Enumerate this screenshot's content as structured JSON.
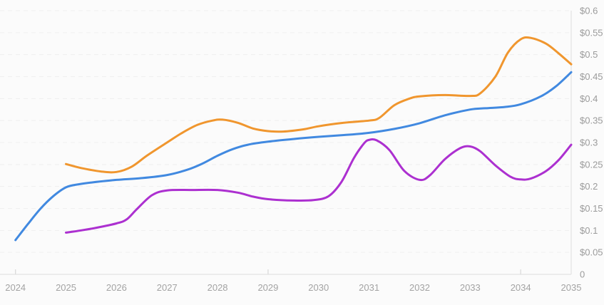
{
  "chart_data": {
    "type": "line",
    "title": "",
    "legend": "none",
    "grid": "horizontal-dashed",
    "xlim": [
      2024,
      2035
    ],
    "ylim": [
      0,
      0.6
    ],
    "x_axis": {
      "labels": [
        "2024",
        "2025",
        "2026",
        "2027",
        "2028",
        "2029",
        "2030",
        "2031",
        "2032",
        "2033",
        "2034",
        "2035"
      ],
      "tick_years": [
        2024,
        2025,
        2026,
        2027,
        2028,
        2029,
        2030,
        2031,
        2032,
        2033,
        2034,
        2035
      ],
      "major_tick_years": [
        2024,
        2029,
        2034
      ]
    },
    "y_axis": {
      "unit": "$",
      "labels": [
        "$0.6",
        "$0.55",
        "$0.5",
        "$0.45",
        "$0.4",
        "$0.35",
        "$0.3",
        "$0.25",
        "$0.2",
        "$0.15",
        "$0.1",
        "$0.05",
        "0"
      ],
      "values": [
        0.6,
        0.55,
        0.5,
        0.45,
        0.4,
        0.35,
        0.3,
        0.25,
        0.2,
        0.15,
        0.1,
        0.05,
        0
      ]
    },
    "series": [
      {
        "name": "blue-series",
        "color": "#4189e0",
        "points": [
          [
            2024,
            0.078
          ],
          [
            2024.25,
            0.115
          ],
          [
            2024.5,
            0.15
          ],
          [
            2024.75,
            0.178
          ],
          [
            2025,
            0.198
          ],
          [
            2025.25,
            0.205
          ],
          [
            2025.5,
            0.209
          ],
          [
            2026,
            0.215
          ],
          [
            2026.5,
            0.219
          ],
          [
            2027,
            0.226
          ],
          [
            2027.4,
            0.238
          ],
          [
            2027.7,
            0.252
          ],
          [
            2028,
            0.27
          ],
          [
            2028.3,
            0.285
          ],
          [
            2028.6,
            0.295
          ],
          [
            2029,
            0.302
          ],
          [
            2029.5,
            0.308
          ],
          [
            2030,
            0.313
          ],
          [
            2030.5,
            0.317
          ],
          [
            2031,
            0.322
          ],
          [
            2031.5,
            0.331
          ],
          [
            2032,
            0.344
          ],
          [
            2032.5,
            0.362
          ],
          [
            2033,
            0.375
          ],
          [
            2033.3,
            0.378
          ],
          [
            2033.7,
            0.381
          ],
          [
            2034,
            0.387
          ],
          [
            2034.4,
            0.405
          ],
          [
            2034.7,
            0.428
          ],
          [
            2035,
            0.46
          ]
        ]
      },
      {
        "name": "orange-series",
        "color": "#f0962e",
        "points": [
          [
            2025,
            0.251
          ],
          [
            2025.3,
            0.242
          ],
          [
            2025.7,
            0.234
          ],
          [
            2026,
            0.233
          ],
          [
            2026.3,
            0.245
          ],
          [
            2026.6,
            0.27
          ],
          [
            2027,
            0.3
          ],
          [
            2027.3,
            0.322
          ],
          [
            2027.6,
            0.34
          ],
          [
            2027.9,
            0.35
          ],
          [
            2028.1,
            0.352
          ],
          [
            2028.4,
            0.345
          ],
          [
            2028.7,
            0.332
          ],
          [
            2029,
            0.326
          ],
          [
            2029.3,
            0.325
          ],
          [
            2029.7,
            0.33
          ],
          [
            2030,
            0.337
          ],
          [
            2030.5,
            0.345
          ],
          [
            2031,
            0.35
          ],
          [
            2031.2,
            0.356
          ],
          [
            2031.5,
            0.385
          ],
          [
            2031.8,
            0.4
          ],
          [
            2032,
            0.405
          ],
          [
            2032.5,
            0.408
          ],
          [
            2033,
            0.406
          ],
          [
            2033.2,
            0.412
          ],
          [
            2033.5,
            0.45
          ],
          [
            2033.75,
            0.505
          ],
          [
            2034,
            0.535
          ],
          [
            2034.2,
            0.538
          ],
          [
            2034.5,
            0.525
          ],
          [
            2034.75,
            0.503
          ],
          [
            2035,
            0.478
          ]
        ]
      },
      {
        "name": "purple-series",
        "color": "#ac30d0",
        "points": [
          [
            2025,
            0.095
          ],
          [
            2025.3,
            0.1
          ],
          [
            2025.6,
            0.106
          ],
          [
            2026,
            0.116
          ],
          [
            2026.2,
            0.125
          ],
          [
            2026.4,
            0.148
          ],
          [
            2026.7,
            0.18
          ],
          [
            2027,
            0.191
          ],
          [
            2027.5,
            0.192
          ],
          [
            2028,
            0.192
          ],
          [
            2028.4,
            0.186
          ],
          [
            2028.7,
            0.177
          ],
          [
            2029,
            0.171
          ],
          [
            2029.5,
            0.168
          ],
          [
            2029.9,
            0.169
          ],
          [
            2030.2,
            0.178
          ],
          [
            2030.45,
            0.21
          ],
          [
            2030.7,
            0.265
          ],
          [
            2030.9,
            0.298
          ],
          [
            2031,
            0.306
          ],
          [
            2031.15,
            0.305
          ],
          [
            2031.4,
            0.283
          ],
          [
            2031.7,
            0.235
          ],
          [
            2032,
            0.215
          ],
          [
            2032.2,
            0.225
          ],
          [
            2032.5,
            0.262
          ],
          [
            2032.8,
            0.287
          ],
          [
            2033,
            0.291
          ],
          [
            2033.2,
            0.28
          ],
          [
            2033.5,
            0.248
          ],
          [
            2033.8,
            0.222
          ],
          [
            2034,
            0.216
          ],
          [
            2034.2,
            0.218
          ],
          [
            2034.5,
            0.235
          ],
          [
            2034.75,
            0.26
          ],
          [
            2035,
            0.295
          ]
        ]
      }
    ],
    "colors": {
      "background": "#fbfbfb",
      "gridline": "#efefef",
      "axis_line": "#e2e2e2",
      "tick_mark": "#d9d9d9",
      "y_label_text": "#9b9b9b",
      "x_label_text": "#a3a3a3"
    }
  }
}
